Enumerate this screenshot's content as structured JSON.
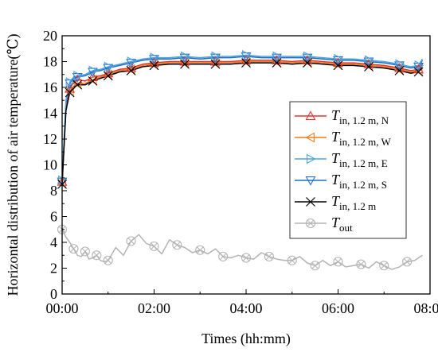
{
  "chart_data": {
    "type": "line",
    "title": "",
    "xlabel": "Times (hh:mm)",
    "ylabel": "Horizontal distribution of air temperature(℃)",
    "xlim": [
      0,
      480
    ],
    "ylim": [
      0,
      20
    ],
    "x_ticks": [
      {
        "value": 0,
        "label": "00:00"
      },
      {
        "value": 120,
        "label": "02:00"
      },
      {
        "value": 240,
        "label": "04:00"
      },
      {
        "value": 360,
        "label": "06:00"
      },
      {
        "value": 480,
        "label": "08:00"
      }
    ],
    "y_ticks": [
      0,
      2,
      4,
      6,
      8,
      10,
      12,
      14,
      16,
      18,
      20
    ],
    "grid": false,
    "legend_position": "right",
    "series": [
      {
        "name": "T_in, 1.2 m, N",
        "legend_main": "T",
        "legend_sub": "in, 1.2 m, N",
        "color": "#e8322b",
        "marker": "triangle-up",
        "x": [
          0,
          5,
          10,
          15,
          20,
          30,
          40,
          50,
          60,
          75,
          90,
          105,
          120,
          140,
          160,
          180,
          200,
          220,
          240,
          260,
          280,
          300,
          320,
          340,
          360,
          380,
          400,
          420,
          440,
          455,
          465,
          470
        ],
        "y": [
          8.7,
          14.5,
          15.9,
          16.4,
          16.6,
          16.5,
          16.8,
          16.9,
          17.1,
          17.4,
          17.5,
          17.8,
          17.9,
          18.0,
          18.0,
          18.0,
          18.0,
          18.0,
          18.1,
          18.1,
          18.1,
          18.0,
          18.1,
          18.0,
          17.9,
          17.9,
          17.8,
          17.7,
          17.5,
          17.3,
          17.4,
          17.9
        ]
      },
      {
        "name": "T_in, 1.2 m, W",
        "legend_main": "T",
        "legend_sub": "in, 1.2 m, W",
        "color": "#f07d1f",
        "marker": "triangle-left",
        "x": [
          0,
          5,
          10,
          15,
          20,
          30,
          40,
          50,
          60,
          75,
          90,
          105,
          120,
          140,
          160,
          180,
          200,
          220,
          240,
          260,
          280,
          300,
          320,
          340,
          360,
          380,
          400,
          420,
          440,
          455,
          465,
          470
        ],
        "y": [
          8.6,
          14.3,
          15.7,
          16.1,
          16.3,
          16.3,
          16.6,
          16.8,
          17.0,
          17.3,
          17.4,
          17.7,
          17.8,
          17.9,
          17.9,
          17.9,
          17.9,
          17.9,
          18.0,
          18.0,
          18.0,
          17.9,
          18.0,
          17.9,
          17.8,
          17.8,
          17.7,
          17.6,
          17.4,
          17.2,
          17.3,
          17.8
        ]
      },
      {
        "name": "T_in, 1.2 m, E",
        "legend_main": "T",
        "legend_sub": "in, 1.2 m, E",
        "color": "#4ea2e0",
        "marker": "triangle-right",
        "x": [
          0,
          5,
          10,
          15,
          20,
          30,
          40,
          50,
          60,
          75,
          90,
          105,
          120,
          140,
          160,
          180,
          200,
          220,
          240,
          260,
          280,
          300,
          320,
          340,
          360,
          380,
          400,
          420,
          440,
          455,
          465,
          470
        ],
        "y": [
          8.8,
          15.0,
          16.4,
          16.8,
          16.9,
          17.0,
          17.3,
          17.4,
          17.6,
          17.8,
          18.0,
          18.2,
          18.3,
          18.3,
          18.4,
          18.3,
          18.4,
          18.4,
          18.5,
          18.4,
          18.4,
          18.4,
          18.4,
          18.3,
          18.2,
          18.2,
          18.1,
          18.0,
          17.8,
          17.6,
          17.7,
          18.2
        ]
      },
      {
        "name": "T_in, 1.2 m, S",
        "legend_main": "T",
        "legend_sub": "in, 1.2 m, S",
        "color": "#1f6fc5",
        "marker": "triangle-down",
        "x": [
          0,
          5,
          10,
          15,
          20,
          30,
          40,
          50,
          60,
          75,
          90,
          105,
          120,
          140,
          160,
          180,
          200,
          220,
          240,
          260,
          280,
          300,
          320,
          340,
          360,
          380,
          400,
          420,
          440,
          455,
          465,
          470
        ],
        "y": [
          8.7,
          14.8,
          16.3,
          16.7,
          16.8,
          16.9,
          17.2,
          17.3,
          17.5,
          17.7,
          17.9,
          18.1,
          18.2,
          18.2,
          18.3,
          18.2,
          18.3,
          18.3,
          18.4,
          18.3,
          18.3,
          18.3,
          18.3,
          18.2,
          18.1,
          18.1,
          18.0,
          17.9,
          17.7,
          17.5,
          17.6,
          18.1
        ]
      },
      {
        "name": "T_in, 1.2 m",
        "legend_main": "T",
        "legend_sub": "in, 1.2 m",
        "color": "#000000",
        "marker": "x",
        "x": [
          0,
          5,
          10,
          15,
          20,
          30,
          40,
          50,
          60,
          75,
          90,
          105,
          120,
          140,
          160,
          180,
          200,
          220,
          240,
          260,
          280,
          300,
          320,
          340,
          360,
          380,
          400,
          420,
          440,
          455,
          465,
          470
        ],
        "y": [
          8.5,
          14.2,
          15.6,
          16.0,
          16.2,
          16.2,
          16.5,
          16.7,
          16.9,
          17.2,
          17.3,
          17.6,
          17.7,
          17.8,
          17.8,
          17.8,
          17.8,
          17.8,
          17.9,
          17.9,
          17.9,
          17.8,
          17.9,
          17.8,
          17.7,
          17.7,
          17.6,
          17.5,
          17.3,
          17.1,
          17.2,
          17.7
        ]
      },
      {
        "name": "T_out",
        "legend_main": "T",
        "legend_sub": "out",
        "color": "#b3b3b3",
        "marker": "circle-x",
        "x": [
          0,
          5,
          10,
          15,
          20,
          25,
          30,
          35,
          40,
          45,
          50,
          55,
          60,
          70,
          80,
          90,
          100,
          110,
          120,
          130,
          140,
          150,
          160,
          170,
          180,
          190,
          200,
          210,
          220,
          230,
          240,
          250,
          260,
          270,
          280,
          290,
          300,
          310,
          320,
          330,
          340,
          350,
          360,
          370,
          380,
          390,
          400,
          410,
          420,
          430,
          440,
          450,
          460,
          470
        ],
        "y": [
          5.0,
          4.4,
          4.0,
          3.5,
          3.0,
          2.9,
          3.3,
          2.7,
          2.8,
          3.0,
          2.6,
          2.5,
          2.6,
          3.6,
          3.0,
          4.1,
          4.6,
          3.9,
          3.7,
          3.1,
          4.2,
          3.8,
          3.6,
          3.2,
          3.4,
          3.1,
          3.5,
          2.9,
          2.8,
          3.0,
          2.8,
          2.7,
          3.2,
          2.9,
          2.7,
          2.6,
          2.6,
          2.9,
          2.4,
          2.2,
          2.6,
          2.2,
          2.5,
          2.1,
          2.2,
          2.3,
          2.0,
          2.5,
          2.2,
          1.9,
          2.1,
          2.5,
          2.6,
          3.0
        ]
      }
    ]
  }
}
